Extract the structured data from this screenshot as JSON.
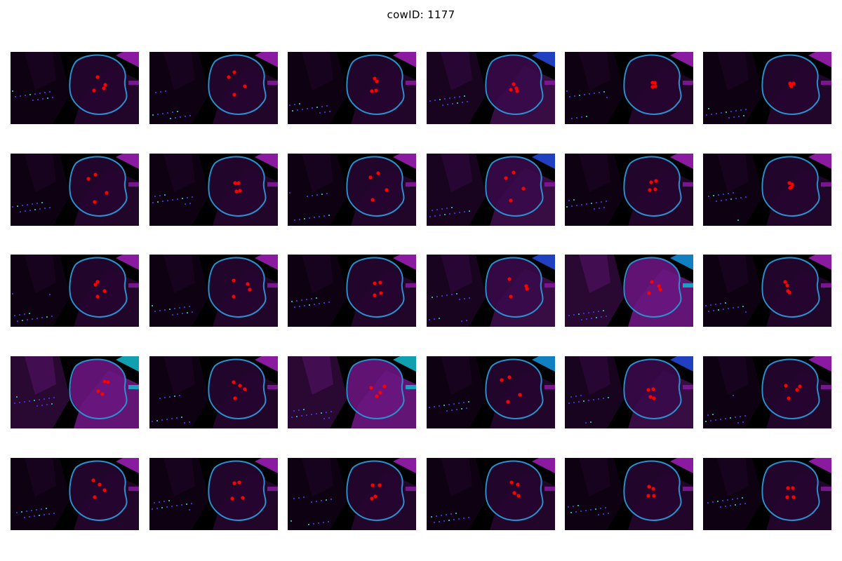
{
  "title": "cowID: 1177",
  "panels": {
    "rows": 5,
    "cols": 6,
    "kind": "depth-map thumbnail with udder contour and teat markers"
  },
  "colors": {
    "background": "#000000",
    "contour": "#2b8fd0",
    "marker": "#ff0000",
    "tissue": "#3a0a45"
  }
}
